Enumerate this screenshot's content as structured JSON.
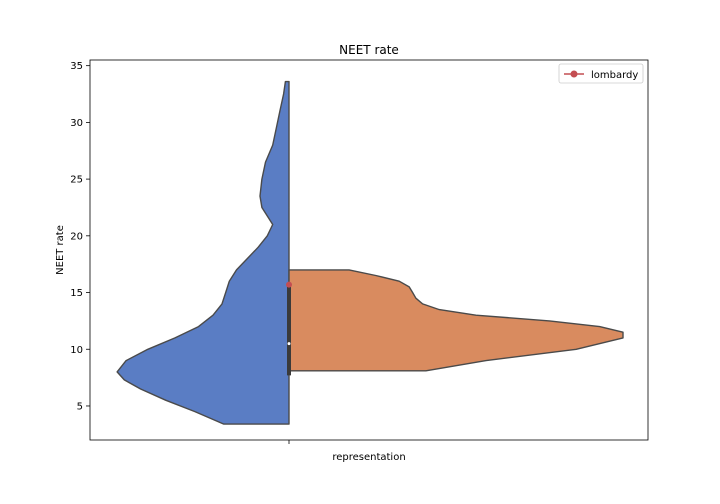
{
  "chart_data": {
    "type": "violin",
    "title": "NEET rate",
    "ylabel": "NEET rate",
    "categories": [
      "representation"
    ],
    "ylim": [
      2,
      35.5
    ],
    "yticks": [
      5,
      10,
      15,
      20,
      25,
      30,
      35
    ],
    "grid": false,
    "legend_position": "top-right",
    "split": true,
    "series": [
      {
        "side": "left",
        "color": "#5a7dc4",
        "min": 3.4,
        "max": 33.6,
        "density": [
          [
            3.4,
            0.36
          ],
          [
            4.5,
            0.52
          ],
          [
            5.5,
            0.68
          ],
          [
            6.5,
            0.82
          ],
          [
            7.3,
            0.91
          ],
          [
            8.0,
            0.95
          ],
          [
            9.0,
            0.9
          ],
          [
            10.0,
            0.78
          ],
          [
            11.0,
            0.63
          ],
          [
            12.0,
            0.5
          ],
          [
            13.0,
            0.42
          ],
          [
            14.0,
            0.37
          ],
          [
            15.0,
            0.35
          ],
          [
            16.0,
            0.33
          ],
          [
            17.0,
            0.29
          ],
          [
            18.0,
            0.23
          ],
          [
            19.0,
            0.17
          ],
          [
            20.0,
            0.12
          ],
          [
            21.0,
            0.09
          ],
          [
            22.5,
            0.15
          ],
          [
            23.5,
            0.16
          ],
          [
            25.0,
            0.15
          ],
          [
            26.5,
            0.13
          ],
          [
            28.0,
            0.09
          ],
          [
            29.5,
            0.07
          ],
          [
            31.0,
            0.05
          ],
          [
            32.5,
            0.03
          ],
          [
            33.6,
            0.02
          ]
        ]
      },
      {
        "side": "right",
        "color": "#d98b5f",
        "min": 8.1,
        "max": 17.0,
        "density": [
          [
            8.1,
            0.41
          ],
          [
            9.0,
            0.59
          ],
          [
            10.0,
            0.86
          ],
          [
            11.0,
            1.0
          ],
          [
            11.5,
            1.0
          ],
          [
            12.0,
            0.93
          ],
          [
            12.5,
            0.78
          ],
          [
            13.0,
            0.56
          ],
          [
            13.5,
            0.45
          ],
          [
            14.0,
            0.4
          ],
          [
            14.5,
            0.38
          ],
          [
            15.0,
            0.37
          ],
          [
            15.5,
            0.36
          ],
          [
            16.0,
            0.33
          ],
          [
            16.5,
            0.26
          ],
          [
            17.0,
            0.18
          ]
        ]
      }
    ],
    "box": {
      "q1": 7.7,
      "q3": 15.5,
      "median": 10.5
    },
    "highlight_point": {
      "label": "lombardy",
      "y": 15.7,
      "color": "#c44e52"
    },
    "legend": [
      {
        "label": "lombardy",
        "color": "#c44e52",
        "marker": "circle-line"
      }
    ]
  }
}
